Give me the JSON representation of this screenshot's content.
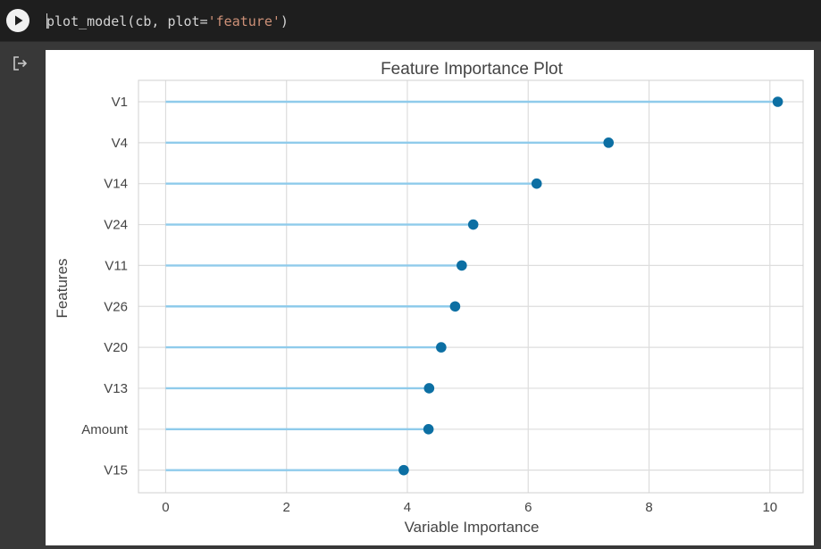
{
  "cell": {
    "code_prefix": "plot_model(cb, plot=",
    "code_string": "'feature'",
    "code_suffix": ")",
    "run_icon": "play-icon",
    "output_icon": "output-redirect-icon"
  },
  "colors": {
    "background": "#383838",
    "code_background": "#1e1e1e",
    "code_text": "#d4d4d4",
    "code_string": "#ce9178",
    "stem_color": "#8fcbeb",
    "marker_color": "#0c6fa3",
    "grid_color": "#dddddd"
  },
  "chart_data": {
    "type": "lollipop",
    "title": "Feature Importance Plot",
    "xlabel": "Variable Importance",
    "ylabel": "Features",
    "xlim": [
      -0.45,
      10.55
    ],
    "xticks": [
      0,
      2,
      4,
      6,
      8,
      10
    ],
    "grid": true,
    "categories": [
      "V1",
      "V4",
      "V14",
      "V24",
      "V11",
      "V26",
      "V20",
      "V13",
      "Amount",
      "V15"
    ],
    "values": [
      10.13,
      7.33,
      6.14,
      5.09,
      4.9,
      4.79,
      4.56,
      4.36,
      4.35,
      3.94
    ]
  }
}
